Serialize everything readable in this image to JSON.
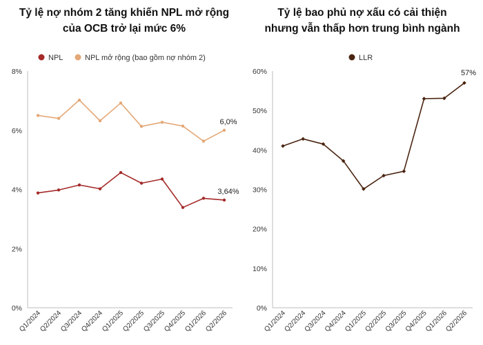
{
  "chart_data": [
    {
      "type": "line",
      "title": [
        "Tỷ lệ nợ nhóm 2 tăng khiến NPL mở rộng",
        "của OCB trở lại mức 6%"
      ],
      "categories": [
        "Q1/2024",
        "Q2/2024",
        "Q3/2024",
        "Q4/2024",
        "Q1/2025",
        "Q2/2025",
        "Q3/2025",
        "Q4/2025",
        "Q1/2026",
        "Q2/2026"
      ],
      "ylim": [
        0,
        8
      ],
      "yticks": [
        0,
        2,
        4,
        6,
        8
      ],
      "ytick_labels": [
        "0%",
        "2%",
        "4%",
        "6%",
        "8%"
      ],
      "legend_position": "top-left",
      "grid": false,
      "series": [
        {
          "name": "NPL",
          "color": "#a52a2a",
          "values": [
            3.88,
            3.98,
            4.15,
            4.02,
            4.57,
            4.21,
            4.35,
            3.39,
            3.7,
            3.64
          ],
          "end_label": "3,64%"
        },
        {
          "name": "NPL mở rộng (bao gồm nợ nhóm 2)",
          "color": "#e3a877",
          "values": [
            6.5,
            6.4,
            7.02,
            6.32,
            6.92,
            6.13,
            6.27,
            6.14,
            5.63,
            6.0
          ],
          "end_label": "6,0%"
        }
      ]
    },
    {
      "type": "line",
      "title": [
        "Tỷ lệ bao phủ nợ xấu có cải thiện",
        "nhưng vẫn thấp hơn trung bình ngành"
      ],
      "categories": [
        "Q1/2024",
        "Q2/2024",
        "Q3/2024",
        "Q4/2024",
        "Q1/2025",
        "Q2/2025",
        "Q3/2025",
        "Q4/2025",
        "Q1/2026",
        "Q2/2026"
      ],
      "ylim": [
        0,
        60
      ],
      "yticks": [
        0,
        10,
        20,
        30,
        40,
        50,
        60
      ],
      "ytick_labels": [
        "0%",
        "10%",
        "20%",
        "30%",
        "40%",
        "50%",
        "60%"
      ],
      "legend_position": "top-center",
      "grid": false,
      "series": [
        {
          "name": "LLR",
          "color": "#4a2511",
          "values": [
            41.0,
            42.8,
            41.5,
            37.2,
            30.1,
            33.5,
            34.6,
            53.0,
            53.1,
            57.0
          ],
          "end_label": "57%"
        }
      ]
    }
  ]
}
